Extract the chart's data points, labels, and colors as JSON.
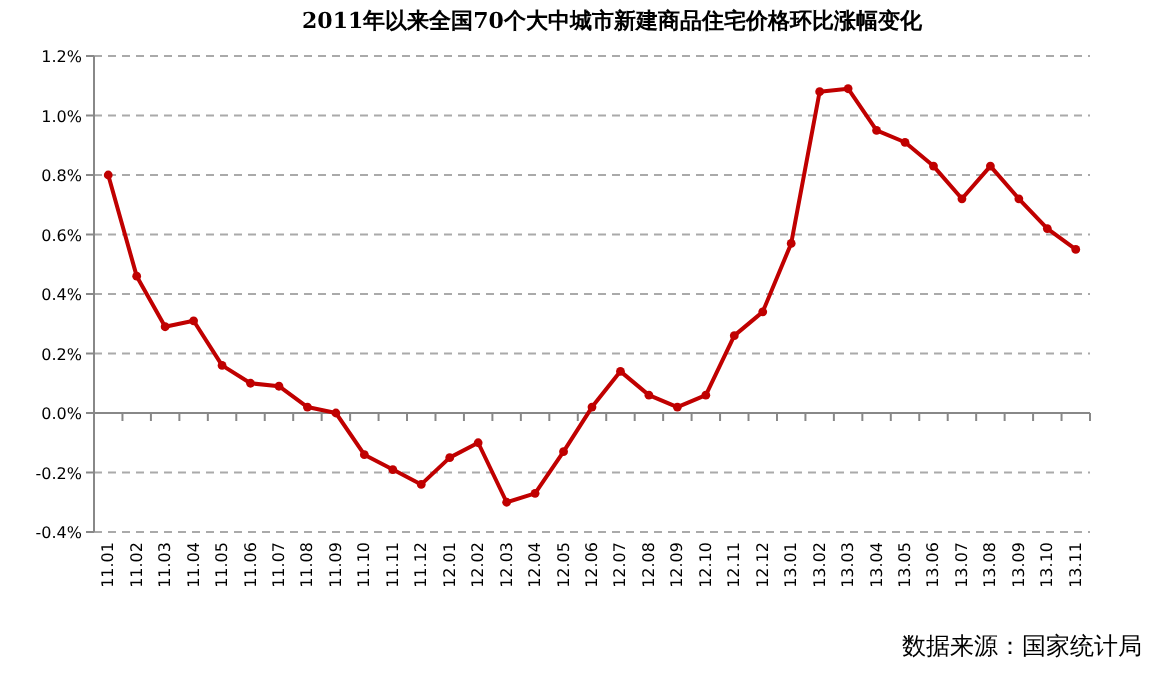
{
  "chart_data": {
    "type": "line",
    "title": "2011年以来全国70个大中城市新建商品住宅价格环比涨幅变化",
    "categories": [
      "11.01",
      "11.02",
      "11.03",
      "11.04",
      "11.05",
      "11.06",
      "11.07",
      "11.08",
      "11.09",
      "11.10",
      "11.11",
      "11.12",
      "12.01",
      "12.02",
      "12.03",
      "12.04",
      "12.05",
      "12.06",
      "12.07",
      "12.08",
      "12.09",
      "12.10",
      "12.11",
      "12.12",
      "13.01",
      "13.02",
      "13.03",
      "13.04",
      "13.05",
      "13.06",
      "13.07",
      "13.08",
      "13.09",
      "13.10",
      "13.11"
    ],
    "series": [
      {
        "color": "#c00000",
        "values": [
          0.8,
          0.46,
          0.29,
          0.31,
          0.16,
          0.1,
          0.09,
          0.02,
          0.0,
          -0.14,
          -0.19,
          -0.24,
          -0.15,
          -0.1,
          -0.3,
          -0.27,
          -0.13,
          0.02,
          0.14,
          0.06,
          0.02,
          0.06,
          0.26,
          0.34,
          0.57,
          1.08,
          1.09,
          0.95,
          0.91,
          0.83,
          0.72,
          0.83,
          0.72,
          0.62,
          0.55
        ]
      }
    ],
    "ylim": [
      -0.4,
      1.2
    ],
    "yticks": [
      {
        "value": -0.4,
        "label": "-0.4%"
      },
      {
        "value": -0.2,
        "label": "-0.2%"
      },
      {
        "value": 0,
        "label": "0.0%"
      },
      {
        "value": 0.2,
        "label": "0.2%"
      },
      {
        "value": 0.4,
        "label": "0.4%"
      },
      {
        "value": 0.6,
        "label": "0.6%"
      },
      {
        "value": 0.8,
        "label": "0.8%"
      },
      {
        "value": 1.0,
        "label": "1.0%"
      },
      {
        "value": 1.2,
        "label": "1.2%"
      }
    ],
    "grid": "y",
    "marker": "circle",
    "line_style": "solid",
    "annotations": [
      "数据来源：国家统计局"
    ]
  }
}
